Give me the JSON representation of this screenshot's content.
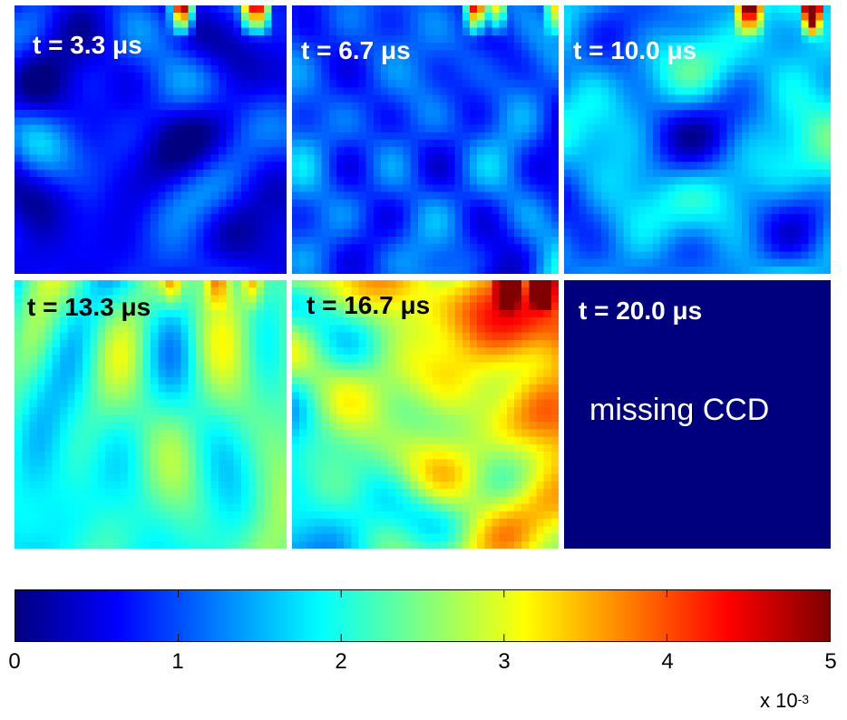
{
  "chart_data": {
    "type": "heatmap",
    "layout": "2x3",
    "panels": [
      {
        "label": "t = 3.3 μs",
        "mean": 0.7,
        "spread": 0.35,
        "gradient": 0.0,
        "hot_top": 0.9
      },
      {
        "label": "t = 6.7 μs",
        "mean": 1.0,
        "spread": 0.4,
        "gradient": 0.0,
        "hot_top": 0.7
      },
      {
        "label": "t = 10.0 μs",
        "mean": 1.45,
        "spread": 0.45,
        "gradient": 0.2,
        "hot_top": 0.9
      },
      {
        "label": "t = 13.3 μs",
        "mean": 2.15,
        "spread": 0.45,
        "gradient": 0.25,
        "hot_top": 0.3
      },
      {
        "label": "t = 16.7 μs",
        "mean": 2.8,
        "spread": 0.45,
        "gradient": 0.9,
        "hot_top": 0.9
      },
      {
        "label": "t = 20.0 μs",
        "note": "missing CCD",
        "missing": true
      }
    ],
    "colorbar": {
      "colormap": "jet",
      "range": [
        0,
        5
      ],
      "ticks": [
        "0",
        "1",
        "2",
        "3",
        "4",
        "5"
      ],
      "multiplier_base": "x 10",
      "multiplier_exp": "-3"
    }
  }
}
